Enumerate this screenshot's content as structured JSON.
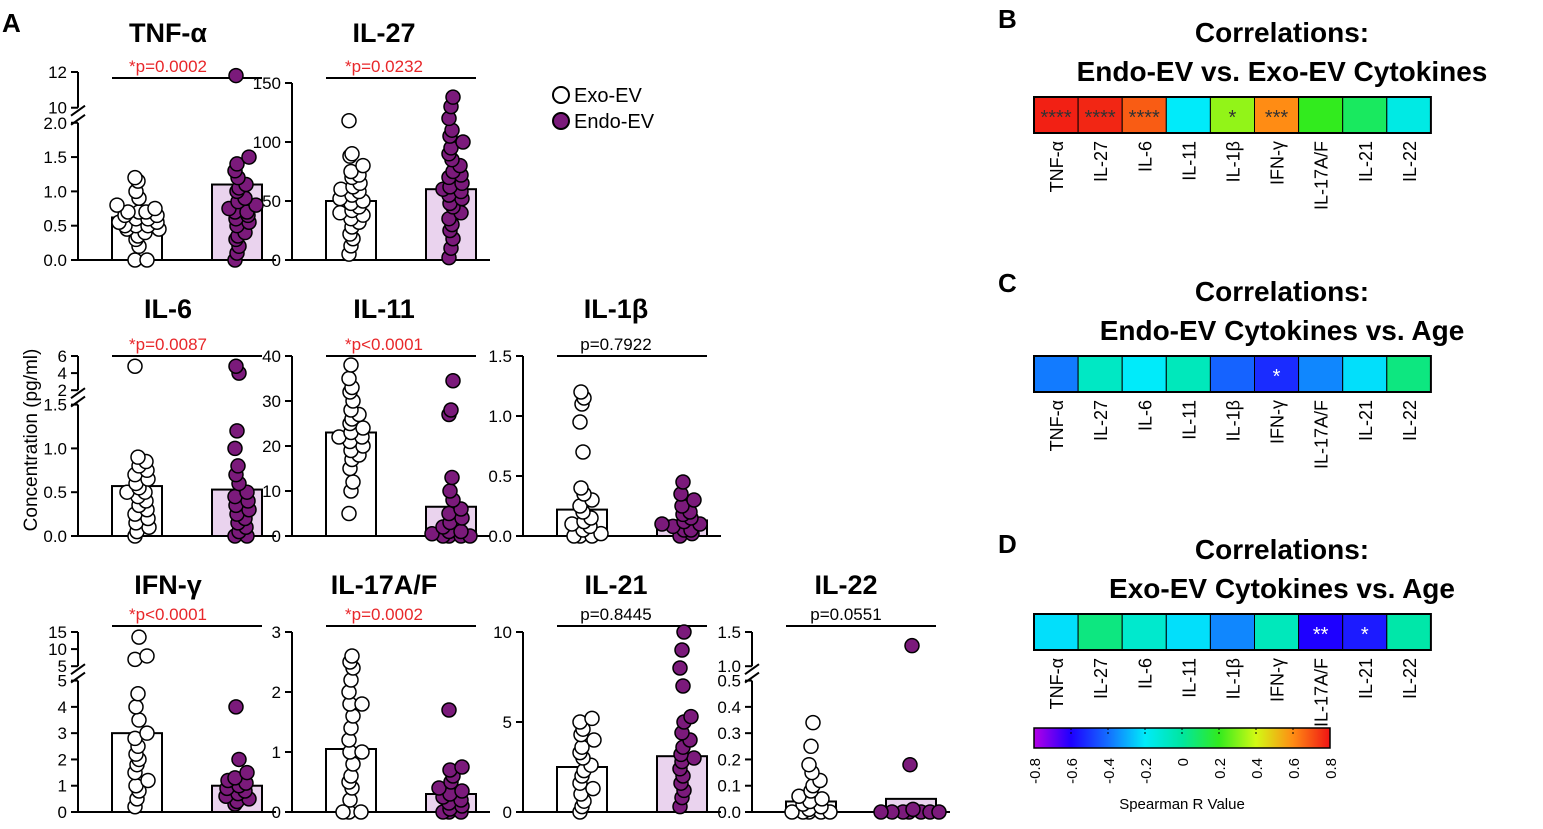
{
  "panel_letters": {
    "A": "A",
    "B": "B",
    "C": "C",
    "D": "D"
  },
  "colors": {
    "exo_fill": "#ffffff",
    "endo_fill": "#7b1a7b",
    "endo_bar": "#ead3ee",
    "sig_red": "#e8272a",
    "ns_black": "#000000"
  },
  "legend": {
    "exo": "Exo-EV",
    "endo": "Endo-EV"
  },
  "y_axis_label": "Concentration (pg/ml)",
  "chart_data": {
    "type": "scatter",
    "description_units": "pg/ml",
    "groups": [
      "Exo-EV",
      "Endo-EV"
    ],
    "panels": [
      {
        "name": "TNF-α",
        "title": "TNF-α",
        "pvalue": "*p=0.0002",
        "significant": true,
        "axis": {
          "type": "broken",
          "lower_range": [
            0,
            2.0
          ],
          "lower_ticks": [
            "0.0",
            "0.5",
            "1.0",
            "1.5",
            "2.0"
          ],
          "upper_range": [
            10,
            12
          ],
          "upper_ticks": [
            "10",
            "12"
          ]
        },
        "exo": {
          "mean": 0.62,
          "points": [
            0.0,
            0.0,
            0.2,
            0.3,
            0.35,
            0.4,
            0.45,
            0.45,
            0.5,
            0.5,
            0.5,
            0.55,
            0.55,
            0.6,
            0.6,
            0.65,
            0.65,
            0.7,
            0.7,
            0.7,
            0.75,
            0.8,
            0.9,
            1.0,
            1.15,
            1.2
          ]
        },
        "endo": {
          "mean": 1.1,
          "points": [
            0.0,
            0.1,
            0.2,
            0.3,
            0.35,
            0.4,
            0.5,
            0.55,
            0.6,
            0.65,
            0.7,
            0.7,
            0.75,
            0.8,
            0.85,
            0.9,
            1.0,
            1.05,
            1.1,
            1.2,
            1.3,
            1.4,
            1.5,
            11.8
          ]
        }
      },
      {
        "name": "IL-27",
        "title": "IL-27",
        "pvalue": "*p=0.0232",
        "significant": true,
        "axis": {
          "type": "linear",
          "range": [
            0,
            150
          ],
          "ticks": [
            "0",
            "50",
            "100",
            "150"
          ]
        },
        "exo": {
          "mean": 50,
          "points": [
            5,
            12,
            18,
            22,
            28,
            32,
            35,
            38,
            40,
            42,
            45,
            48,
            50,
            52,
            55,
            58,
            60,
            62,
            65,
            70,
            72,
            75,
            80,
            88,
            90,
            118
          ]
        },
        "endo": {
          "mean": 60,
          "points": [
            2,
            10,
            18,
            25,
            30,
            35,
            40,
            45,
            48,
            52,
            55,
            58,
            60,
            62,
            65,
            70,
            72,
            75,
            80,
            85,
            90,
            95,
            100,
            105,
            110,
            120,
            130,
            138
          ]
        }
      },
      {
        "name": "IL-6",
        "title": "IL-6",
        "pvalue": "*p=0.0087",
        "significant": true,
        "axis": {
          "type": "broken",
          "lower_range": [
            0,
            1.5
          ],
          "lower_ticks": [
            "0.0",
            "0.5",
            "1.0",
            "1.5"
          ],
          "upper_range": [
            2,
            6
          ],
          "upper_ticks": [
            "2",
            "4",
            "6"
          ]
        },
        "exo": {
          "mean": 0.57,
          "points": [
            0.0,
            0.05,
            0.1,
            0.15,
            0.2,
            0.25,
            0.3,
            0.35,
            0.4,
            0.45,
            0.5,
            0.5,
            0.55,
            0.6,
            0.65,
            0.7,
            0.75,
            0.8,
            0.85,
            0.9,
            4.8
          ]
        },
        "endo": {
          "mean": 0.53,
          "points": [
            0.0,
            0.0,
            0.05,
            0.1,
            0.15,
            0.2,
            0.25,
            0.3,
            0.35,
            0.4,
            0.45,
            0.5,
            0.6,
            0.7,
            0.8,
            1.0,
            1.2,
            4.0,
            4.8
          ]
        }
      },
      {
        "name": "IL-11",
        "title": "IL-11",
        "pvalue": "*p<0.0001",
        "significant": true,
        "axis": {
          "type": "linear",
          "range": [
            0,
            40
          ],
          "ticks": [
            "0",
            "10",
            "20",
            "30",
            "40"
          ]
        },
        "exo": {
          "mean": 23,
          "points": [
            5,
            10,
            12,
            15,
            17,
            18,
            19,
            20,
            21,
            22,
            22,
            23,
            24,
            25,
            26,
            27,
            28,
            30,
            32,
            33,
            35,
            38
          ]
        },
        "endo": {
          "mean": 6.5,
          "points": [
            0,
            0,
            0,
            0,
            0.5,
            1,
            1,
            2,
            3,
            4,
            5,
            6,
            8,
            10,
            13,
            27,
            28,
            34.5
          ]
        }
      },
      {
        "name": "IL-1β",
        "title": "IL-1β",
        "pvalue": "p=0.7922",
        "significant": false,
        "axis": {
          "type": "linear",
          "range": [
            0,
            1.5
          ],
          "ticks": [
            "0.0",
            "0.5",
            "1.0",
            "1.5"
          ]
        },
        "exo": {
          "mean": 0.22,
          "points": [
            0.0,
            0.0,
            0.0,
            0.02,
            0.05,
            0.08,
            0.1,
            0.12,
            0.15,
            0.2,
            0.25,
            0.3,
            0.35,
            0.4,
            0.7,
            0.95,
            1.1,
            1.15,
            1.2
          ]
        },
        "endo": {
          "mean": 0.13,
          "points": [
            0.0,
            0.02,
            0.05,
            0.05,
            0.08,
            0.1,
            0.1,
            0.12,
            0.15,
            0.18,
            0.2,
            0.25,
            0.3,
            0.35,
            0.45
          ]
        }
      },
      {
        "name": "IFN-γ",
        "title": "IFN-γ",
        "pvalue": "*p<0.0001",
        "significant": true,
        "axis": {
          "type": "broken",
          "lower_range": [
            0,
            5
          ],
          "lower_ticks": [
            "0",
            "1",
            "2",
            "3",
            "4",
            "5"
          ],
          "upper_range": [
            5,
            15
          ],
          "upper_ticks": [
            "5",
            "10",
            "15"
          ]
        },
        "exo": {
          "mean": 3.0,
          "points": [
            0.2,
            0.5,
            0.8,
            1.0,
            1.2,
            1.5,
            1.8,
            2.0,
            2.2,
            2.5,
            2.8,
            3.0,
            3.5,
            4.0,
            4.5,
            7,
            8,
            13.5
          ]
        },
        "endo": {
          "mean": 1.0,
          "points": [
            0.3,
            0.4,
            0.5,
            0.6,
            0.7,
            0.8,
            0.9,
            1.0,
            1.1,
            1.2,
            1.3,
            1.5,
            2.0,
            4.0
          ]
        }
      },
      {
        "name": "IL-17A/F",
        "title": "IL-17A/F",
        "pvalue": "*p=0.0002",
        "significant": true,
        "axis": {
          "type": "linear",
          "range": [
            0,
            3
          ],
          "ticks": [
            "0",
            "1",
            "2",
            "3"
          ]
        },
        "exo": {
          "mean": 1.05,
          "points": [
            0,
            0,
            0,
            0.2,
            0.4,
            0.5,
            0.6,
            0.8,
            1.0,
            1.0,
            1.2,
            1.4,
            1.6,
            1.8,
            1.8,
            2.0,
            2.2,
            2.4,
            2.5,
            2.6
          ]
        },
        "endo": {
          "mean": 0.3,
          "points": [
            0,
            0,
            0,
            0.05,
            0.1,
            0.15,
            0.2,
            0.25,
            0.3,
            0.35,
            0.4,
            0.5,
            0.6,
            0.7,
            0.75,
            1.7
          ]
        }
      },
      {
        "name": "IL-21",
        "title": "IL-21",
        "pvalue": "p=0.8445",
        "significant": false,
        "axis": {
          "type": "linear",
          "range": [
            0,
            10
          ],
          "ticks": [
            "0",
            "5",
            "10"
          ]
        },
        "exo": {
          "mean": 2.5,
          "points": [
            0,
            0.3,
            0.6,
            1.0,
            1.3,
            1.6,
            2.0,
            2.3,
            2.6,
            3.0,
            3.3,
            3.6,
            4.0,
            4.3,
            4.6,
            5.0,
            5.2
          ]
        },
        "endo": {
          "mean": 3.1,
          "points": [
            0.3,
            0.8,
            1.2,
            1.6,
            2.0,
            2.4,
            2.8,
            3.0,
            3.2,
            3.6,
            4.0,
            4.4,
            5.0,
            5.3,
            7,
            8,
            9,
            10
          ]
        }
      },
      {
        "name": "IL-22",
        "title": "IL-22",
        "pvalue": "p=0.0551",
        "significant": false,
        "axis": {
          "type": "broken",
          "lower_range": [
            0,
            0.5
          ],
          "lower_ticks": [
            "0.0",
            "0.1",
            "0.2",
            "0.3",
            "0.4",
            "0.5"
          ],
          "upper_range": [
            1.0,
            1.5
          ],
          "upper_ticks": [
            "1.0",
            "1.5"
          ]
        },
        "exo": {
          "mean": 0.04,
          "points": [
            0,
            0,
            0,
            0,
            0,
            0.01,
            0.02,
            0.03,
            0.04,
            0.05,
            0.06,
            0.08,
            0.1,
            0.12,
            0.15,
            0.18,
            0.25,
            0.34
          ]
        },
        "endo": {
          "mean": 0.05,
          "points": [
            0,
            0,
            0,
            0,
            0,
            0,
            0,
            0.01,
            0.18,
            1.3
          ]
        }
      }
    ],
    "heatmaps": [
      {
        "letter": "B",
        "title_line1": "Correlations:",
        "title_line2": "Endo-EV vs. Exo-EV Cytokines",
        "labels": [
          "TNF-α",
          "IL-27",
          "IL-6",
          "IL-11",
          "IL-1β",
          "IFN-γ",
          "IL-17A/F",
          "IL-21",
          "IL-22"
        ],
        "values": [
          0.78,
          0.77,
          0.68,
          -0.2,
          0.32,
          0.6,
          0.2,
          0.1,
          -0.15
        ],
        "stars": [
          "****",
          "****",
          "****",
          "",
          "*",
          "***",
          "",
          "",
          ""
        ]
      },
      {
        "letter": "C",
        "title_line1": "Correlations:",
        "title_line2": "Endo-EV Cytokines vs. Age",
        "labels": [
          "TNF-α",
          "IL-27",
          "IL-6",
          "IL-11",
          "IL-1β",
          "IFN-γ",
          "IL-17A/F",
          "IL-21",
          "IL-22"
        ],
        "values": [
          -0.38,
          -0.08,
          -0.2,
          -0.06,
          -0.42,
          -0.52,
          -0.36,
          -0.22,
          0.05
        ],
        "stars": [
          "",
          "",
          "",
          "",
          "",
          "*",
          "",
          "",
          ""
        ]
      },
      {
        "letter": "D",
        "title_line1": "Correlations:",
        "title_line2": "Exo-EV Cytokines vs. Age",
        "labels": [
          "TNF-α",
          "IL-27",
          "IL-6",
          "IL-11",
          "IL-1β",
          "IFN-γ",
          "IL-17A/F",
          "IL-21",
          "IL-22"
        ],
        "values": [
          -0.22,
          0.05,
          -0.1,
          -0.22,
          -0.36,
          -0.06,
          -0.6,
          -0.55,
          -0.02
        ],
        "stars": [
          "",
          "",
          "",
          "",
          "",
          "",
          "**",
          "*",
          ""
        ]
      }
    ],
    "colorbar": {
      "label": "Spearman R Value",
      "range": [
        -0.8,
        0.8
      ],
      "ticks": [
        "-0.8",
        "-0.6",
        "-0.4",
        "-0.2",
        "0",
        "0.2",
        "0.4",
        "0.6",
        "0.8"
      ]
    }
  }
}
